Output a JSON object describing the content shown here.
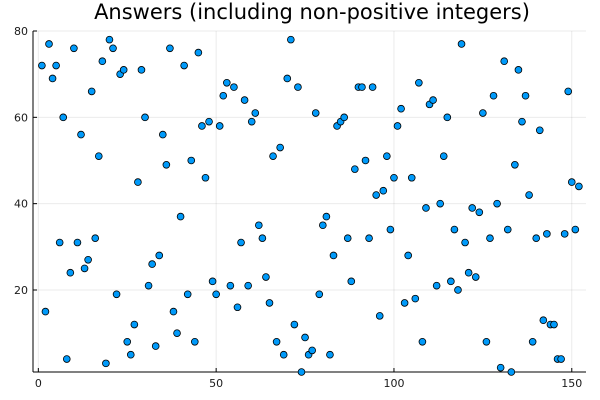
{
  "chart_data": {
    "type": "scatter",
    "title": "Answers (including non-positive integers)",
    "xlabel": "",
    "ylabel": "",
    "xlim": [
      -1.5,
      154
    ],
    "ylim": [
      1,
      80
    ],
    "xticks": [
      0,
      50,
      100,
      150
    ],
    "yticks": [
      20,
      40,
      60,
      80
    ],
    "grid": true,
    "legend": "none",
    "colors": {
      "point_fill": "#009AFA",
      "point_stroke": "#000000"
    },
    "series": [
      {
        "x": [
          1,
          2,
          3,
          4,
          5,
          6,
          7,
          8,
          9,
          10,
          11,
          12,
          13,
          14,
          15,
          16,
          17,
          18,
          19,
          20,
          21,
          22,
          23,
          24,
          25,
          26,
          27,
          28,
          29,
          30,
          31,
          32,
          33,
          34,
          35,
          36,
          37,
          38,
          39,
          40,
          41,
          42,
          43,
          44,
          45,
          46,
          47,
          48,
          49,
          50,
          51,
          52,
          53,
          54,
          55,
          56,
          57,
          58,
          59,
          60,
          61,
          62,
          63,
          64,
          65,
          66,
          67,
          68,
          69,
          70,
          71,
          72,
          73,
          74,
          75,
          76,
          77,
          78,
          79,
          80,
          81,
          82,
          83,
          84,
          85,
          86,
          87,
          88,
          89,
          90,
          91,
          92,
          93,
          94,
          95,
          96,
          97,
          98,
          99,
          100,
          101,
          102,
          103,
          104,
          105,
          106,
          107,
          108,
          109,
          110,
          111,
          112,
          113,
          114,
          115,
          116,
          117,
          118,
          119,
          120,
          121,
          122,
          123,
          124,
          125,
          126,
          127,
          128,
          129,
          130,
          131,
          132,
          133,
          134,
          135,
          136,
          137,
          138,
          139,
          140,
          141,
          142,
          143,
          144,
          145,
          146,
          147,
          148,
          149,
          150,
          151,
          152
        ],
        "y": [
          72,
          15,
          77,
          69,
          72,
          31,
          60,
          4,
          24,
          76,
          31,
          56,
          25,
          27,
          66,
          32,
          51,
          73,
          3,
          78,
          76,
          19,
          70,
          71,
          8,
          5,
          12,
          45,
          71,
          60,
          21,
          26,
          7,
          28,
          56,
          49,
          76,
          15,
          10,
          37,
          72,
          19,
          50,
          8,
          75,
          58,
          46,
          59,
          22,
          19,
          58,
          65,
          68,
          21,
          67,
          16,
          31,
          64,
          21,
          59,
          61,
          35,
          32,
          23,
          17,
          51,
          8,
          53,
          5,
          69,
          78,
          12,
          67,
          1,
          9,
          5,
          6,
          61,
          19,
          35,
          37,
          5,
          28,
          58,
          59,
          60,
          32,
          22,
          48,
          67,
          67,
          50,
          32,
          67,
          42,
          14,
          43,
          51,
          34,
          46,
          58,
          62,
          17,
          28,
          46,
          18,
          68,
          8,
          39,
          63,
          64,
          21,
          40,
          51,
          60,
          22,
          34,
          20,
          77,
          31,
          24,
          39,
          23,
          38,
          61,
          8,
          32,
          65,
          40,
          2,
          73,
          34,
          1,
          49,
          71,
          59,
          65,
          42,
          8,
          32,
          57,
          13,
          33,
          12,
          12,
          4,
          4,
          33,
          66,
          45,
          34,
          44
        ]
      }
    ]
  }
}
